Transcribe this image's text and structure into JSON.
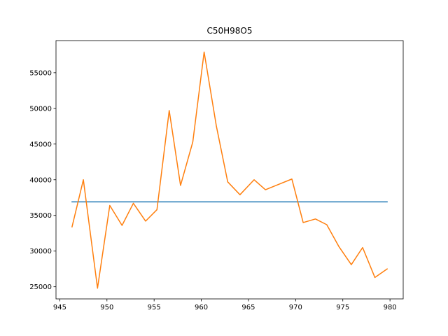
{
  "chart_data": {
    "type": "line",
    "title": "C50H98O5",
    "xlabel": "",
    "ylabel": "",
    "xlim": [
      944.6,
      981.4
    ],
    "ylim": [
      23300,
      59500
    ],
    "xticks": [
      945,
      950,
      955,
      960,
      965,
      970,
      975,
      980
    ],
    "yticks": [
      25000,
      30000,
      35000,
      40000,
      45000,
      50000,
      55000
    ],
    "grid": false,
    "legend": "none",
    "series": [
      {
        "color": "#1f77b4",
        "x": [
          946.3,
          979.7
        ],
        "y": [
          36900,
          36900
        ]
      },
      {
        "color": "#ff7f0e",
        "x": [
          946.3,
          947.5,
          949.0,
          950.3,
          951.6,
          952.8,
          954.1,
          955.3,
          956.6,
          957.8,
          959.1,
          960.3,
          961.6,
          962.8,
          964.1,
          965.6,
          966.8,
          968.1,
          969.6,
          970.8,
          972.1,
          973.3,
          974.6,
          975.9,
          977.1,
          978.4,
          979.7
        ],
        "y": [
          33400,
          40000,
          24800,
          36400,
          33600,
          36700,
          34200,
          35800,
          49700,
          39200,
          45300,
          57900,
          47500,
          39700,
          37900,
          40000,
          38600,
          39300,
          40100,
          34000,
          34500,
          33700,
          30600,
          28100,
          30500,
          26300,
          27500
        ]
      }
    ]
  }
}
